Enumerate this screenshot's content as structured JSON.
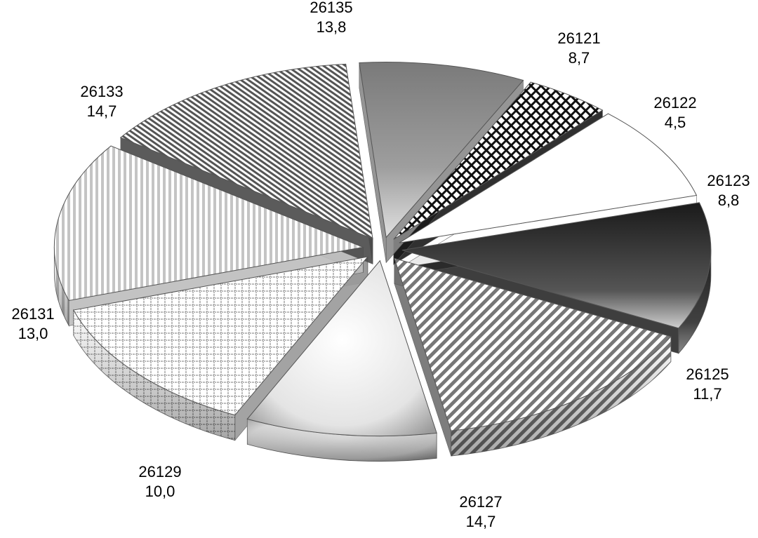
{
  "chart_data": {
    "type": "pie",
    "title": "",
    "legend": "none",
    "exploded": true,
    "three_d": true,
    "slices": [
      {
        "label": "26121",
        "value_text": "8,7",
        "value": 8.7,
        "color": "#8a8a8a",
        "pattern": "gradient-mid"
      },
      {
        "label": "26122",
        "value_text": "4,5",
        "value": 4.5,
        "color": "#1a1a1a",
        "pattern": "crosshatch"
      },
      {
        "label": "26123",
        "value_text": "8,8",
        "value": 8.8,
        "color": "#ffffff",
        "pattern": "white"
      },
      {
        "label": "26125",
        "value_text": "11,7",
        "value": 11.7,
        "color": "#2a2a2a",
        "pattern": "gradient-dark"
      },
      {
        "label": "26127",
        "value_text": "14,7",
        "value": 14.7,
        "color": "#707070",
        "pattern": "diagonal"
      },
      {
        "label": "26129",
        "value_text": "10,0",
        "value": 10.0,
        "color": "#d8d8d8",
        "pattern": "gradient-light"
      },
      {
        "label": "26131",
        "value_text": "13,0",
        "value": 13.0,
        "color": "#9a9a9a",
        "pattern": "dotted-grid"
      },
      {
        "label": "26133",
        "value_text": "14,7",
        "value": 14.7,
        "color": "#bdbdbd",
        "pattern": "vertical"
      },
      {
        "label": "26135",
        "value_text": "13,8",
        "value": 13.8,
        "color": "#4a4a4a",
        "pattern": "fine-diagonal"
      }
    ]
  }
}
